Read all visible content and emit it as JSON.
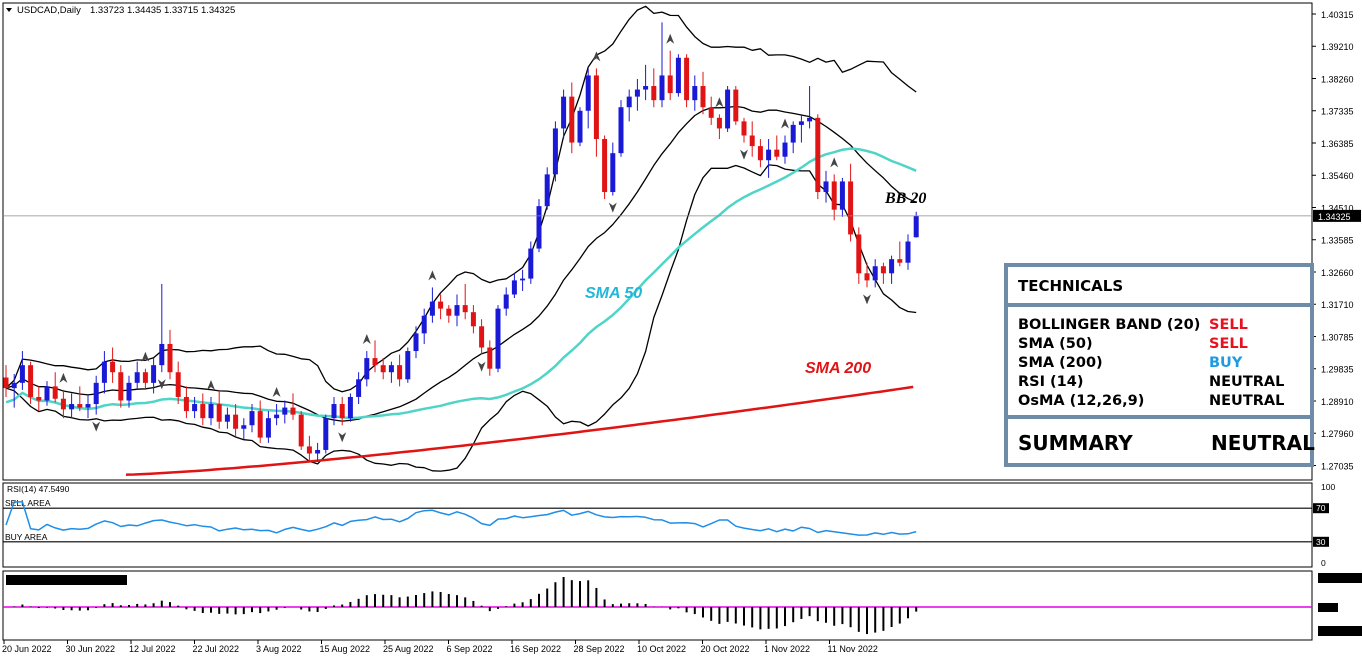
{
  "chart_data": {
    "type": "candlestick",
    "title": "USDCAD,Daily",
    "ohlc_header": "1.33723 1.34435 1.33715 1.34325",
    "price_labels": [
      "1.40315",
      "1.39210",
      "1.38260",
      "1.37335",
      "1.36385",
      "1.35460",
      "1.34510",
      "1.33585",
      "1.32660",
      "1.31710",
      "1.30785",
      "1.29835",
      "1.28910",
      "1.27960",
      "1.27035"
    ],
    "current_price": "1.34325",
    "date_labels": [
      "20 Jun 2022",
      "30 Jun 2022",
      "12 Jul 2022",
      "22 Jul 2022",
      "3 Aug 2022",
      "15 Aug 2022",
      "25 Aug 2022",
      "6 Sep 2022",
      "16 Sep 2022",
      "28 Sep 2022",
      "10 Oct 2022",
      "20 Oct 2022",
      "1 Nov 2022",
      "11 Nov 2022"
    ],
    "ylim": [
      1.2685,
      1.4035
    ],
    "candles": [
      [
        1.2975,
        1.301,
        1.292,
        1.2945
      ],
      [
        1.2945,
        1.2985,
        1.289,
        1.296
      ],
      [
        1.296,
        1.305,
        1.294,
        1.301
      ],
      [
        1.301,
        1.302,
        1.29,
        1.292
      ],
      [
        1.292,
        1.295,
        1.288,
        1.291
      ],
      [
        1.291,
        1.2965,
        1.2895,
        1.295
      ],
      [
        1.295,
        1.299,
        1.2905,
        1.2915
      ],
      [
        1.2915,
        1.294,
        1.286,
        1.2885
      ],
      [
        1.2885,
        1.293,
        1.286,
        1.29
      ],
      [
        1.29,
        1.295,
        1.288,
        1.289
      ],
      [
        1.289,
        1.2925,
        1.286,
        1.29
      ],
      [
        1.29,
        1.298,
        1.287,
        1.296
      ],
      [
        1.296,
        1.305,
        1.293,
        1.302
      ],
      [
        1.302,
        1.306,
        1.296,
        1.299
      ],
      [
        1.299,
        1.301,
        1.289,
        1.291
      ],
      [
        1.291,
        1.298,
        1.289,
        1.296
      ],
      [
        1.296,
        1.302,
        1.294,
        1.299
      ],
      [
        1.299,
        1.3,
        1.294,
        1.296
      ],
      [
        1.296,
        1.303,
        1.293,
        1.301
      ],
      [
        1.301,
        1.324,
        1.299,
        1.307
      ],
      [
        1.307,
        1.311,
        1.297,
        1.299
      ],
      [
        1.299,
        1.302,
        1.29,
        1.292
      ],
      [
        1.292,
        1.295,
        1.286,
        1.288
      ],
      [
        1.288,
        1.292,
        1.286,
        1.29
      ],
      [
        1.29,
        1.293,
        1.284,
        1.286
      ],
      [
        1.286,
        1.292,
        1.284,
        1.29
      ],
      [
        1.29,
        1.294,
        1.283,
        1.285
      ],
      [
        1.285,
        1.289,
        1.283,
        1.287
      ],
      [
        1.287,
        1.29,
        1.281,
        1.283
      ],
      [
        1.283,
        1.286,
        1.28,
        1.284
      ],
      [
        1.284,
        1.29,
        1.282,
        1.288
      ],
      [
        1.288,
        1.291,
        1.279,
        1.2805
      ],
      [
        1.2805,
        1.288,
        1.279,
        1.286
      ],
      [
        1.286,
        1.29,
        1.284,
        1.287
      ],
      [
        1.287,
        1.291,
        1.2845,
        1.289
      ],
      [
        1.289,
        1.293,
        1.2855,
        1.287
      ],
      [
        1.287,
        1.288,
        1.277,
        1.278
      ],
      [
        1.278,
        1.281,
        1.274,
        1.276
      ],
      [
        1.276,
        1.279,
        1.274,
        1.277
      ],
      [
        1.277,
        1.287,
        1.276,
        1.286
      ],
      [
        1.286,
        1.292,
        1.284,
        1.29
      ],
      [
        1.29,
        1.292,
        1.284,
        1.286
      ],
      [
        1.286,
        1.293,
        1.285,
        1.292
      ],
      [
        1.292,
        1.299,
        1.29,
        1.297
      ],
      [
        1.297,
        1.305,
        1.295,
        1.303
      ],
      [
        1.303,
        1.308,
        1.299,
        1.301
      ],
      [
        1.301,
        1.303,
        1.297,
        1.299
      ],
      [
        1.299,
        1.302,
        1.296,
        1.301
      ],
      [
        1.301,
        1.304,
        1.295,
        1.297
      ],
      [
        1.297,
        1.306,
        1.296,
        1.305
      ],
      [
        1.305,
        1.312,
        1.303,
        1.31
      ],
      [
        1.31,
        1.317,
        1.307,
        1.315
      ],
      [
        1.315,
        1.323,
        1.313,
        1.319
      ],
      [
        1.319,
        1.321,
        1.314,
        1.317
      ],
      [
        1.317,
        1.318,
        1.313,
        1.315
      ],
      [
        1.315,
        1.321,
        1.312,
        1.318
      ],
      [
        1.318,
        1.324,
        1.314,
        1.316
      ],
      [
        1.316,
        1.318,
        1.31,
        1.312
      ],
      [
        1.312,
        1.314,
        1.304,
        1.306
      ],
      [
        1.306,
        1.308,
        1.298,
        1.3
      ],
      [
        1.3,
        1.318,
        1.299,
        1.317
      ],
      [
        1.317,
        1.323,
        1.315,
        1.321
      ],
      [
        1.321,
        1.327,
        1.32,
        1.325
      ],
      [
        1.325,
        1.328,
        1.322,
        1.3255
      ],
      [
        1.3255,
        1.336,
        1.324,
        1.334
      ],
      [
        1.334,
        1.348,
        1.333,
        1.346
      ],
      [
        1.346,
        1.357,
        1.345,
        1.355
      ],
      [
        1.355,
        1.37,
        1.353,
        1.368
      ],
      [
        1.368,
        1.379,
        1.365,
        1.377
      ],
      [
        1.377,
        1.381,
        1.361,
        1.364
      ],
      [
        1.364,
        1.374,
        1.363,
        1.373
      ],
      [
        1.373,
        1.385,
        1.368,
        1.383
      ],
      [
        1.383,
        1.385,
        1.36,
        1.365
      ],
      [
        1.365,
        1.366,
        1.348,
        1.35
      ],
      [
        1.35,
        1.364,
        1.349,
        1.361
      ],
      [
        1.361,
        1.376,
        1.36,
        1.374
      ],
      [
        1.374,
        1.379,
        1.37,
        1.377
      ],
      [
        1.377,
        1.382,
        1.373,
        1.379
      ],
      [
        1.379,
        1.386,
        1.376,
        1.38
      ],
      [
        1.38,
        1.385,
        1.374,
        1.376
      ],
      [
        1.376,
        1.398,
        1.374,
        1.383
      ],
      [
        1.383,
        1.39,
        1.376,
        1.378
      ],
      [
        1.378,
        1.389,
        1.377,
        1.388
      ],
      [
        1.388,
        1.389,
        1.374,
        1.376
      ],
      [
        1.376,
        1.383,
        1.373,
        1.38
      ],
      [
        1.38,
        1.384,
        1.372,
        1.374
      ],
      [
        1.374,
        1.377,
        1.369,
        1.371
      ],
      [
        1.371,
        1.372,
        1.365,
        1.368
      ],
      [
        1.368,
        1.38,
        1.367,
        1.379
      ],
      [
        1.379,
        1.38,
        1.369,
        1.37
      ],
      [
        1.37,
        1.371,
        1.364,
        1.366
      ],
      [
        1.366,
        1.37,
        1.36,
        1.363
      ],
      [
        1.363,
        1.365,
        1.357,
        1.359
      ],
      [
        1.359,
        1.365,
        1.354,
        1.362
      ],
      [
        1.362,
        1.366,
        1.359,
        1.36
      ],
      [
        1.36,
        1.366,
        1.358,
        1.364
      ],
      [
        1.364,
        1.37,
        1.361,
        1.369
      ],
      [
        1.369,
        1.372,
        1.364,
        1.37
      ],
      [
        1.37,
        1.38,
        1.368,
        1.371
      ],
      [
        1.371,
        1.372,
        1.348,
        1.35
      ],
      [
        1.35,
        1.356,
        1.347,
        1.353
      ],
      [
        1.353,
        1.355,
        1.342,
        1.345
      ],
      [
        1.345,
        1.354,
        1.343,
        1.353
      ],
      [
        1.353,
        1.358,
        1.336,
        1.338
      ],
      [
        1.338,
        1.34,
        1.324,
        1.327
      ],
      [
        1.327,
        1.33,
        1.323,
        1.325
      ],
      [
        1.325,
        1.331,
        1.323,
        1.329
      ],
      [
        1.329,
        1.33,
        1.324,
        1.327
      ],
      [
        1.327,
        1.332,
        1.324,
        1.331
      ],
      [
        1.331,
        1.336,
        1.329,
        1.33
      ],
      [
        1.33,
        1.338,
        1.328,
        1.336
      ],
      [
        1.3372,
        1.3444,
        1.3371,
        1.3433
      ]
    ],
    "indicators": {
      "bollinger_label": "BB 20",
      "sma50_label": "SMA 50",
      "sma200_label": "SMA 200",
      "rsi_label": "RSI(14) 47.5490",
      "rsi_levels": {
        "top": "100",
        "upper": "70",
        "lower": "30",
        "bottom": "0"
      },
      "rsi_sell_label": "SELL AREA",
      "rsi_buy_label": "BUY AREA"
    },
    "colors": {
      "up": "#1a1ad6",
      "down": "#e01414",
      "sma50": "#4fd4c8",
      "sma200": "#e01414",
      "rsi": "#1e8ee8",
      "osma_zero": "#e600e6"
    }
  },
  "technicals": {
    "header": "TECHNICALS",
    "rows": [
      {
        "label": "BOLLINGER BAND (20)",
        "signal": "SELL",
        "cls": "sell"
      },
      {
        "label": "SMA (50)",
        "signal": "SELL",
        "cls": "sell"
      },
      {
        "label": "SMA (200)",
        "signal": "BUY",
        "cls": "buy"
      },
      {
        "label": "RSI (14)",
        "signal": "NEUTRAL",
        "cls": "neutral"
      },
      {
        "label": "OsMA (12,26,9)",
        "signal": "NEUTRAL",
        "cls": "neutral"
      }
    ],
    "summary_label": "SUMMARY",
    "summary_value": "NEUTRAL"
  }
}
